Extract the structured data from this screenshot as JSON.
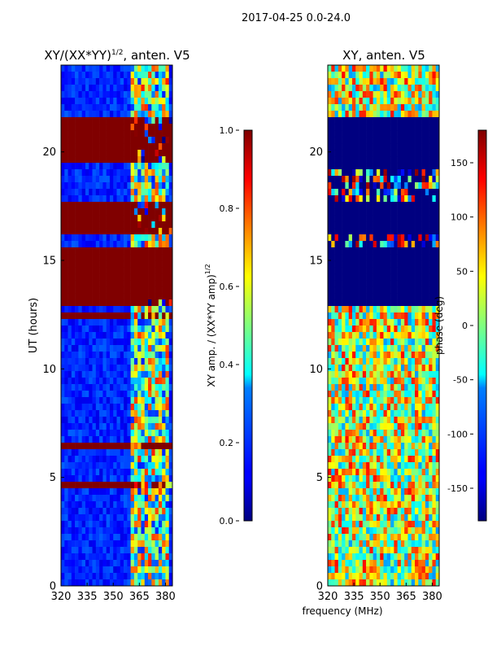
{
  "suptitle": "2017-04-25 0.0-24.0",
  "shared_xlabel": "frequency (MHz)",
  "chart_data": [
    {
      "type": "heatmap",
      "title_main": "XY/(XX*YY)",
      "title_sup": "1/2",
      "title_tail": ", anten. V5",
      "ylabel": "UT (hours)",
      "xlim": [
        320,
        384
      ],
      "ylim": [
        0,
        24
      ],
      "xticks": [
        320,
        335,
        350,
        365,
        380
      ],
      "yticks": [
        0,
        5,
        10,
        15,
        20
      ],
      "colorbar": {
        "label_main": "XY amp. / (XX*YY amp)",
        "label_sup": "1/2",
        "ticks": [
          "0.0",
          "0.2",
          "0.4",
          "0.6",
          "0.8",
          "1.0"
        ],
        "range": [
          0,
          1
        ]
      },
      "saturated_hour_bands": [
        [
          13.0,
          15.5
        ],
        [
          16.3,
          17.6
        ],
        [
          19.4,
          21.7
        ],
        [
          6.3,
          6.5
        ],
        [
          12.4,
          12.6
        ],
        [
          4.6,
          4.7
        ],
        [
          0.0,
          0.1
        ]
      ],
      "bright_freq_range_mhz": [
        360,
        382
      ],
      "background_value": 0.1
    },
    {
      "type": "heatmap",
      "title": "XY, anten. V5",
      "xlim": [
        320,
        384
      ],
      "ylim": [
        0,
        24
      ],
      "xticks": [
        320,
        335,
        350,
        365,
        380
      ],
      "yticks": [
        0,
        5,
        10,
        15,
        20
      ],
      "colorbar": {
        "label": "phase (deg)",
        "ticks": [
          "-150",
          "-100",
          "-50",
          "0",
          "50",
          "100",
          "150"
        ],
        "range": [
          -180,
          180
        ]
      },
      "flat_hour_bands": [
        [
          12.9,
          15.5
        ],
        [
          16.3,
          17.8
        ],
        [
          19.3,
          21.7
        ]
      ],
      "flat_value": -180
    }
  ]
}
